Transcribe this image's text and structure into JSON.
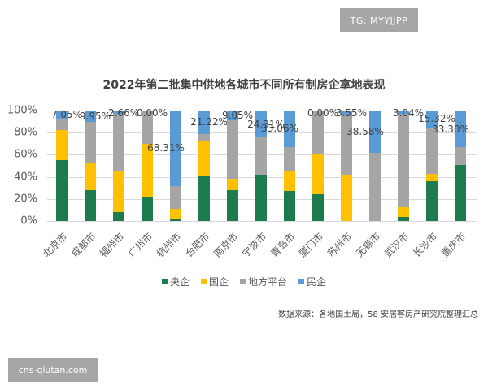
{
  "badge": {
    "text": "TG: MYYJJPP"
  },
  "watermark": {
    "text": "cns-qiutan.com"
  },
  "source_note": "数据来源：各地国土局，58 安居客房产研究院整理汇总",
  "colors": {
    "central": "#1e7b4e",
    "state": "#ffc000",
    "local": "#a5a5a5",
    "private": "#5b9bd5"
  },
  "chart_data": {
    "type": "bar",
    "stacked": true,
    "percent_stacked": true,
    "title": "2022年第二批集中供地各城市不同所有制房企拿地表现",
    "xlabel": "",
    "ylabel": "",
    "ylim": [
      0,
      100
    ],
    "yticks": [
      "0%",
      "20%",
      "40%",
      "60%",
      "80%",
      "100%"
    ],
    "grid": true,
    "legend_position": "bottom",
    "categories": [
      "北京市",
      "成都市",
      "福州市",
      "广州市",
      "杭州市",
      "合肥市",
      "南京市",
      "宁波市",
      "青岛市",
      "厦门市",
      "苏州市",
      "无锡市",
      "武汉市",
      "长沙市",
      "重庆市"
    ],
    "series": [
      {
        "name": "央企",
        "key": "central",
        "values": [
          55,
          28,
          8,
          22,
          2,
          41,
          28,
          42,
          27,
          24,
          0,
          0,
          3.5,
          36,
          51
        ]
      },
      {
        "name": "国企",
        "key": "state",
        "values": [
          27,
          25,
          37,
          48,
          9,
          32,
          10,
          0,
          18,
          36,
          42,
          0,
          9,
          7,
          0
        ]
      },
      {
        "name": "地方平台",
        "key": "local",
        "values": [
          10.95,
          37.05,
          52.34,
          30,
          20.69,
          5.78,
          52.95,
          33.69,
          21.94,
          40,
          54.45,
          61.42,
          84.46,
          41.68,
          15.7
        ]
      },
      {
        "name": "民企",
        "key": "private",
        "values": [
          7.05,
          9.95,
          2.66,
          0,
          68.31,
          21.22,
          9.05,
          24.31,
          33.06,
          0,
          3.55,
          38.58,
          3.04,
          15.32,
          33.3
        ]
      }
    ],
    "data_labels": [
      "7.05%",
      "9.95%",
      "2.66%",
      "0.00%",
      "68.31%",
      "21.22%",
      "9.05%",
      "24.31%",
      "33.06%",
      "0.00%",
      "3.55%",
      "38.58%",
      "3.04%",
      "15.32%",
      "33.30%"
    ],
    "data_label_series": "民企"
  }
}
